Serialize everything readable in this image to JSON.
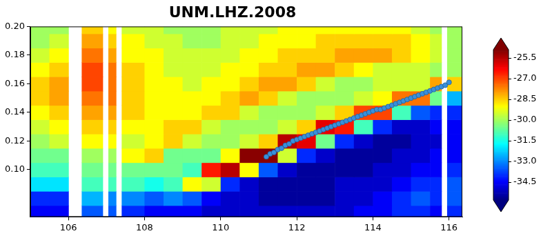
{
  "chart_data": {
    "type": "heatmap",
    "title": "UNM.LHZ.2008",
    "grid": false,
    "xlim": [
      105,
      116.35
    ],
    "xticks": [
      106,
      108,
      110,
      112,
      114,
      116
    ],
    "ylim": [
      0.067,
      0.2
    ],
    "yticks": [
      {
        "value": 0.1,
        "label": "0.10"
      },
      0.12,
      0.14,
      0.16,
      0.18,
      {
        "value": 0.2,
        "label": "0.20"
      }
    ],
    "x_edges": [
      105,
      105.5,
      106,
      106.35,
      106.9,
      107.05,
      107.25,
      107.4,
      108,
      108.5,
      109,
      109.5,
      110,
      110.5,
      111,
      111.5,
      112,
      112.5,
      113,
      113.5,
      114,
      114.5,
      115,
      115.5,
      115.8,
      115.95,
      116.35
    ],
    "y_edges": [
      0.067,
      0.075,
      0.085,
      0.095,
      0.105,
      0.115,
      0.125,
      0.135,
      0.145,
      0.155,
      0.165,
      0.175,
      0.185,
      0.195,
      0.2
    ],
    "cells": [
      [
        -34.5,
        -34.5,
        null,
        -33.5,
        null,
        -33.5,
        null,
        -34,
        -34.5,
        -34.5,
        -34.5,
        -35,
        -35,
        -35,
        -35,
        -35,
        -35,
        -35,
        -35,
        -34.5,
        -34.5,
        -34,
        -34,
        -34.5,
        null,
        -34
      ],
      [
        -34,
        -34,
        null,
        -32.5,
        null,
        -33,
        null,
        -33,
        -33.5,
        -33,
        -33.5,
        -34.5,
        -35,
        -35,
        -35.5,
        -35.5,
        -35.5,
        -35.5,
        -35,
        -35,
        -34.5,
        -34,
        -33.5,
        -34,
        null,
        -33.5
      ],
      [
        -32,
        -32,
        null,
        -31,
        null,
        -31,
        null,
        -31,
        -31.5,
        -31,
        -29,
        -29.5,
        -34,
        -35,
        -35.5,
        -35.5,
        -35.5,
        -35.5,
        -35,
        -35,
        -35,
        -34.5,
        -34,
        -34,
        null,
        -33.5
      ],
      [
        -31,
        -31,
        null,
        -30.5,
        null,
        -30.5,
        null,
        -30.5,
        -30.5,
        -30.5,
        -31,
        -26.5,
        -25.5,
        -29,
        -33.5,
        -35,
        -35.5,
        -35.5,
        -35.5,
        -35.5,
        -35,
        -35,
        -34.5,
        -34.5,
        null,
        -34
      ],
      [
        -30.5,
        -30.5,
        null,
        -30,
        null,
        -30,
        null,
        -29,
        -28.5,
        -30.5,
        -30.5,
        -30.5,
        -29,
        -25,
        -25,
        -29.5,
        -34,
        -35,
        -35.5,
        -35.5,
        -35.5,
        -35,
        -35,
        -34.5,
        null,
        -34.5
      ],
      [
        -30,
        -29.5,
        null,
        -29,
        null,
        -29,
        null,
        -29.5,
        -29,
        -28.5,
        -29.5,
        -30,
        -30,
        -29.5,
        -28.5,
        -25.5,
        -26,
        -30.5,
        -34,
        -35,
        -35.5,
        -35.5,
        -35,
        -35,
        null,
        -34.5
      ],
      [
        -29.5,
        -29,
        null,
        -28.5,
        null,
        -28.5,
        null,
        -29,
        -29,
        -28.5,
        -28.5,
        -29.5,
        -30,
        -30,
        -30,
        -29.5,
        -28.5,
        -26,
        -26.5,
        -31,
        -34,
        -35,
        -35,
        -34.5,
        null,
        -34.5
      ],
      [
        -29,
        -28.5,
        null,
        -28,
        null,
        -28,
        null,
        -28.5,
        -29,
        -29,
        -29,
        -28.5,
        -28.5,
        -29.5,
        -30,
        -30,
        -30,
        -29.5,
        -28.5,
        -27,
        -27,
        -31,
        -33.5,
        -34,
        null,
        -34
      ],
      [
        -28.5,
        -28,
        null,
        -27.5,
        null,
        -27.5,
        null,
        -28.5,
        -29,
        -29,
        -29,
        -29,
        -28.5,
        -28,
        -28.5,
        -29.5,
        -30,
        -30,
        -30,
        -29.5,
        -29,
        -27.5,
        -27.5,
        -30.5,
        null,
        -32.5
      ],
      [
        -28.5,
        -28,
        null,
        -27,
        null,
        -27.5,
        null,
        -28.5,
        -29,
        -29,
        -29.5,
        -29,
        -29,
        -28.5,
        -28,
        -28,
        -28.5,
        -29.5,
        -30,
        -30,
        -29.5,
        -29.5,
        -29.5,
        -28,
        null,
        -28.5
      ],
      [
        -29,
        -28.5,
        null,
        -27,
        null,
        -27.5,
        null,
        -28.5,
        -29,
        -29.5,
        -29.5,
        -29.5,
        -29,
        -29,
        -28.5,
        -28.5,
        -28,
        -28,
        -28.5,
        -29,
        -29.5,
        -29.5,
        -29.5,
        -30,
        null,
        -30
      ],
      [
        -29.5,
        -29,
        null,
        -27.5,
        null,
        -28,
        null,
        -29,
        -29,
        -29.5,
        -29.5,
        -29.5,
        -29.5,
        -29,
        -29,
        -28.5,
        -28.5,
        -28.5,
        -28,
        -28,
        -28,
        -28.5,
        -29,
        -29.5,
        null,
        -30
      ],
      [
        -30,
        -29.5,
        null,
        -28,
        null,
        -28.5,
        null,
        -29,
        -29.5,
        -29.5,
        -30,
        -30,
        -29.5,
        -29.5,
        -29,
        -29,
        -29,
        -28.5,
        -28.5,
        -28.5,
        -28.5,
        -28.5,
        -29,
        -29.5,
        null,
        -30
      ],
      [
        -30,
        -30,
        null,
        -28.5,
        null,
        -29,
        null,
        -29.5,
        -29.5,
        -30,
        -30,
        -30,
        -29.5,
        -29.5,
        -29.5,
        -29,
        -29,
        -29,
        -29,
        -29,
        -29,
        -29,
        -29.5,
        -30,
        null,
        -30
      ]
    ],
    "colorbar": {
      "range": [
        -35.8,
        -24.9
      ],
      "ticks": [
        -34.5,
        {
          "value": -33,
          "label": "-33.0"
        },
        -31.5,
        {
          "value": -30,
          "label": "-30.0"
        },
        -28.5,
        {
          "value": -27,
          "label": "-27.0"
        },
        -25.5
      ]
    },
    "series": [
      {
        "type": "scatter",
        "color": "#3a8fd9",
        "marker": "circle",
        "x": [
          111.2,
          111.3,
          111.4,
          111.5,
          111.6,
          111.7,
          111.8,
          111.9,
          112.0,
          112.1,
          112.2,
          112.3,
          112.4,
          112.5,
          112.6,
          112.7,
          112.8,
          112.9,
          113.0,
          113.1,
          113.2,
          113.3,
          113.4,
          113.5,
          113.6,
          113.7,
          113.8,
          113.9,
          114.0,
          114.1,
          114.2,
          114.3,
          114.4,
          114.5,
          114.6,
          114.7,
          114.8,
          114.9,
          115.0,
          115.1,
          115.2,
          115.3,
          115.4,
          115.5,
          115.6,
          115.7,
          115.8,
          115.9,
          116.0
        ],
        "values": [
          0.109,
          0.111,
          0.112,
          0.114,
          0.115,
          0.117,
          0.118,
          0.12,
          0.121,
          0.122,
          0.123,
          0.124,
          0.125,
          0.126,
          0.127,
          0.128,
          0.129,
          0.13,
          0.131,
          0.132,
          0.133,
          0.134,
          0.135,
          0.136,
          0.137,
          0.138,
          0.139,
          0.14,
          0.141,
          0.142,
          0.142,
          0.143,
          0.144,
          0.145,
          0.146,
          0.147,
          0.148,
          0.149,
          0.15,
          0.151,
          0.152,
          0.153,
          0.154,
          0.155,
          0.156,
          0.157,
          0.158,
          0.159,
          0.161
        ]
      }
    ]
  }
}
